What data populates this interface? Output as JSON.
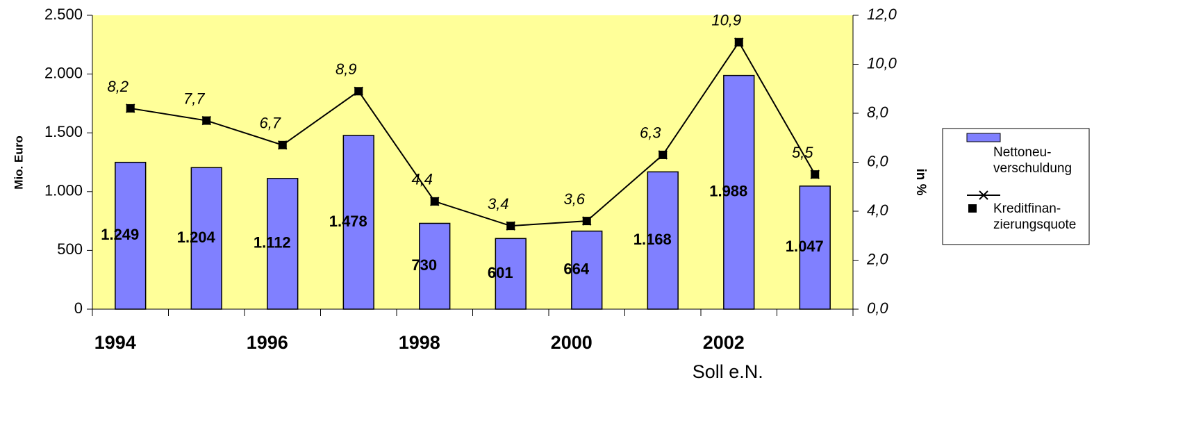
{
  "chart_data": {
    "type": "bar_line",
    "categories": [
      "1994",
      null,
      "1996",
      null,
      "1998",
      null,
      "2000",
      null,
      "2002",
      null
    ],
    "x_note": "Soll e.N.",
    "ylabel": "Mio. Euro",
    "y2label": "in %",
    "series": [
      {
        "name": "Nettoneu-verschuldung",
        "color": "#8080ff",
        "type": "bar",
        "values": [
          1249,
          1204,
          1112,
          1478,
          730,
          601,
          664,
          1168,
          1988,
          1047
        ],
        "value_labels": [
          "1.249",
          "1.204",
          "1.112",
          "1.478",
          "730",
          "601",
          "664",
          "1.168",
          "1.988",
          "1.047"
        ]
      },
      {
        "name": "Kreditfinan-zierungsquote",
        "color": "#000000",
        "type": "line",
        "axis": "y2",
        "values": [
          8.2,
          7.7,
          6.7,
          8.9,
          4.4,
          3.4,
          3.6,
          6.3,
          10.9,
          5.5
        ],
        "value_labels": [
          "8,2",
          "7,7",
          "6,7",
          "8,9",
          "4,4",
          "3,4",
          "3,6",
          "6,3",
          "10,9",
          "5,5"
        ]
      }
    ],
    "ylim": [
      0,
      2500
    ],
    "yticks": [
      0,
      500,
      {
        "value": 1000,
        "label": "1.000"
      },
      {
        "value": 1500,
        "label": "1.500"
      },
      {
        "value": 2000,
        "label": "2.000"
      },
      {
        "value": 2500,
        "label": "2.500"
      }
    ],
    "y2lim": [
      0,
      12
    ],
    "y2ticks": [
      {
        "value": 0,
        "label": "0,0"
      },
      {
        "value": 2,
        "label": "2,0"
      },
      {
        "value": 4,
        "label": "4,0"
      },
      {
        "value": 6,
        "label": "6,0"
      },
      {
        "value": 8,
        "label": "8,0"
      },
      {
        "value": 10,
        "label": "10,0"
      },
      {
        "value": 12,
        "label": "12,0"
      }
    ],
    "plot_background": "#ffff99"
  }
}
